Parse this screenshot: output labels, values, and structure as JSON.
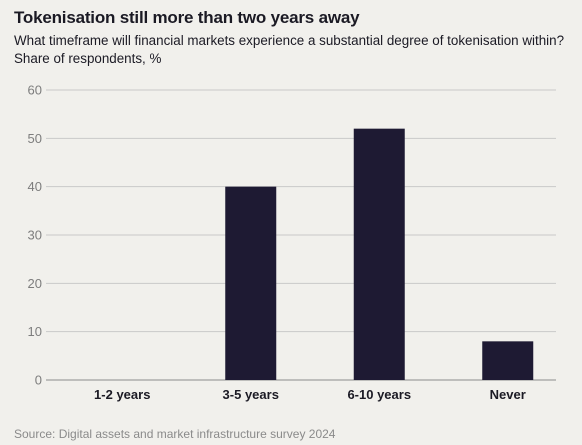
{
  "chart_data": {
    "type": "bar",
    "title": "Tokenisation still more than two years away",
    "subtitle": "What timeframe will financial markets experience a substantial degree of tokenisation within? Share of respondents, %",
    "categories": [
      "1-2 years",
      "3-5 years",
      "6-10 years",
      "Never"
    ],
    "values": [
      0,
      40,
      52,
      8
    ],
    "ylim": [
      0,
      60
    ],
    "yticks": [
      0,
      10,
      20,
      30,
      40,
      50,
      60
    ],
    "grid": true,
    "bar_color": "#1e1a33",
    "source": "Source: Digital assets and market infrastructure survey 2024"
  }
}
